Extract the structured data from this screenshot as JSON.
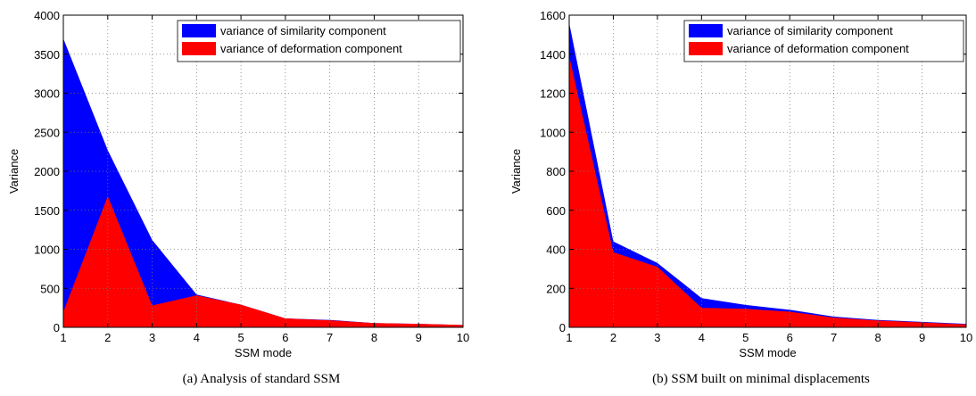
{
  "chart_data": [
    {
      "type": "area",
      "caption": "(a) Analysis of standard SSM",
      "xlabel": "SSM mode",
      "ylabel": "Variance",
      "xlim": [
        1,
        10
      ],
      "ylim": [
        0,
        4000
      ],
      "xticks": [
        1,
        2,
        3,
        4,
        5,
        6,
        7,
        8,
        9,
        10
      ],
      "yticks": [
        0,
        500,
        1000,
        1500,
        2000,
        2500,
        3000,
        3500,
        4000
      ],
      "grid": true,
      "legend_position": "top-right",
      "x": [
        1,
        2,
        3,
        4,
        5,
        6,
        7,
        8,
        9,
        10
      ],
      "series": [
        {
          "name": "variance of similarity component",
          "color": "#0000ff",
          "values": [
            3700,
            2270,
            1120,
            420,
            290,
            115,
            95,
            55,
            45,
            30
          ]
        },
        {
          "name": "variance of deformation component",
          "color": "#ff0000",
          "values": [
            200,
            1680,
            280,
            410,
            290,
            115,
            90,
            55,
            45,
            30
          ]
        }
      ]
    },
    {
      "type": "area",
      "caption": "(b) SSM built on minimal displacements",
      "xlabel": "SSM mode",
      "ylabel": "Variance",
      "xlim": [
        1,
        10
      ],
      "ylim": [
        0,
        1600
      ],
      "xticks": [
        1,
        2,
        3,
        4,
        5,
        6,
        7,
        8,
        9,
        10
      ],
      "yticks": [
        0,
        200,
        400,
        600,
        800,
        1000,
        1200,
        1400,
        1600
      ],
      "grid": true,
      "legend_position": "top-right",
      "x": [
        1,
        2,
        3,
        4,
        5,
        6,
        7,
        8,
        9,
        10
      ],
      "series": [
        {
          "name": "variance of similarity component",
          "color": "#0000ff",
          "values": [
            1560,
            440,
            330,
            150,
            115,
            90,
            55,
            38,
            28,
            18
          ]
        },
        {
          "name": "variance of deformation component",
          "color": "#ff0000",
          "values": [
            1390,
            385,
            310,
            100,
            95,
            80,
            50,
            35,
            25,
            15
          ]
        }
      ]
    }
  ]
}
